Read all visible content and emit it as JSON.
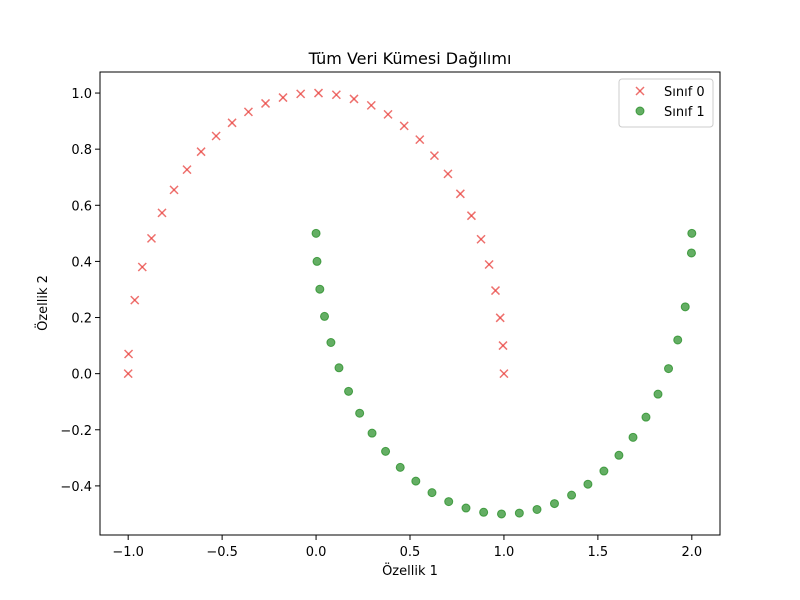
{
  "chart_data": {
    "type": "scatter",
    "title": "Tüm Veri Kümesi Dağılımı",
    "xlabel": "Özellik 1",
    "ylabel": "Özellik 2",
    "xlim": [
      -1.15,
      2.15
    ],
    "ylim": [
      -0.575,
      1.075
    ],
    "xticks": [
      -1.0,
      -0.5,
      0.0,
      0.5,
      1.0,
      1.5,
      2.0
    ],
    "xtick_labels": [
      "−1.0",
      "−0.5",
      "0.0",
      "0.5",
      "1.0",
      "1.5",
      "2.0"
    ],
    "yticks": [
      -0.4,
      -0.2,
      0.0,
      0.2,
      0.4,
      0.6,
      0.8,
      1.0
    ],
    "ytick_labels": [
      "−0.4",
      "−0.2",
      "0.0",
      "0.2",
      "0.4",
      "0.6",
      "0.8",
      "1.0"
    ],
    "grid": false,
    "legend_position": "top-right",
    "series": [
      {
        "name": "Sınıf 0",
        "marker": "x",
        "color": "#e8403c",
        "x": [
          1.0,
          0.995,
          0.98,
          0.955,
          0.921,
          0.878,
          0.827,
          0.768,
          0.702,
          0.63,
          0.552,
          0.469,
          0.383,
          0.294,
          0.202,
          0.108,
          0.013,
          -0.082,
          -0.176,
          -0.269,
          -0.36,
          -0.447,
          -0.532,
          -0.612,
          -0.687,
          -0.756,
          -0.82,
          -0.876,
          -0.925,
          -0.965,
          -0.998,
          -1.0
        ],
        "y": [
          0.0,
          0.1,
          0.199,
          0.296,
          0.389,
          0.479,
          0.563,
          0.641,
          0.712,
          0.777,
          0.834,
          0.883,
          0.924,
          0.956,
          0.979,
          0.994,
          1.0,
          0.997,
          0.984,
          0.963,
          0.933,
          0.894,
          0.847,
          0.791,
          0.727,
          0.655,
          0.573,
          0.482,
          0.38,
          0.262,
          0.07,
          0.0
        ]
      },
      {
        "name": "Sınıf 1",
        "marker": "o",
        "color": "#228b22",
        "x": [
          0.0,
          0.005,
          0.02,
          0.045,
          0.079,
          0.122,
          0.173,
          0.232,
          0.298,
          0.37,
          0.448,
          0.531,
          0.617,
          0.706,
          0.798,
          0.892,
          0.987,
          1.082,
          1.176,
          1.269,
          1.36,
          1.447,
          1.532,
          1.612,
          1.687,
          1.756,
          1.82,
          1.876,
          1.925,
          1.965,
          1.998,
          2.0
        ],
        "y": [
          0.5,
          0.4,
          0.301,
          0.204,
          0.111,
          0.021,
          -0.063,
          -0.141,
          -0.212,
          -0.277,
          -0.334,
          -0.383,
          -0.424,
          -0.456,
          -0.479,
          -0.494,
          -0.5,
          -0.497,
          -0.484,
          -0.463,
          -0.433,
          -0.394,
          -0.347,
          -0.291,
          -0.227,
          -0.155,
          -0.073,
          0.018,
          0.12,
          0.238,
          0.43,
          0.5
        ]
      }
    ]
  }
}
